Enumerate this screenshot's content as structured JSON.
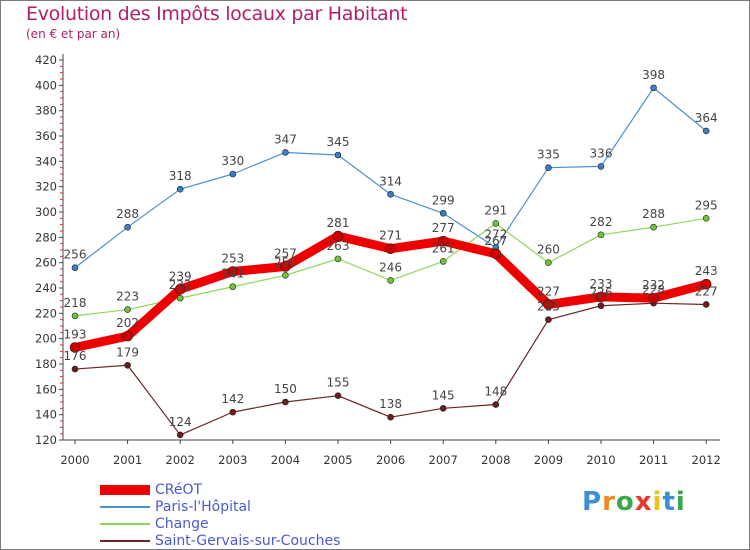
{
  "title": "Evolution des Impôts locaux par Habitant",
  "subtitle": "(en € et par an)",
  "logo": {
    "text": "Proxiti",
    "letters": [
      {
        "ch": "P",
        "color": "#3a8fd6"
      },
      {
        "ch": "r",
        "color": "#f08a1c"
      },
      {
        "ch": "o",
        "color": "#3aa84a"
      },
      {
        "ch": "x",
        "color": "#e8372a"
      },
      {
        "ch": "i",
        "color": "#f0c01c"
      },
      {
        "ch": "t",
        "color": "#3a8fd6"
      },
      {
        "ch": "i",
        "color": "#3aa84a"
      }
    ]
  },
  "chart_data": {
    "type": "line",
    "title": "Evolution des Impôts locaux par Habitant",
    "subtitle": "(en € et par an)",
    "xlabel": "",
    "ylabel": "",
    "ylim": [
      120,
      420
    ],
    "yticks": [
      120,
      140,
      160,
      180,
      200,
      220,
      240,
      260,
      280,
      300,
      320,
      340,
      360,
      380,
      400,
      420
    ],
    "grid": false,
    "legend_position": "bottom-left",
    "x": [
      "2000",
      "2001",
      "2002",
      "2003",
      "2004",
      "2005",
      "2006",
      "2007",
      "2008",
      "2009",
      "2010",
      "2011",
      "2012"
    ],
    "series": [
      {
        "name": "Paris-l'Hôpital",
        "color": "#4a90d0",
        "dot": "#3a7fc6",
        "width": 1.2,
        "values": [
          256,
          288,
          318,
          330,
          347,
          345,
          314,
          299,
          272,
          335,
          336,
          398,
          364
        ]
      },
      {
        "name": "Change",
        "color": "#8ed85a",
        "dot": "#6cc43a",
        "width": 1.2,
        "values": [
          218,
          223,
          232,
          241,
          250,
          263,
          246,
          261,
          291,
          260,
          282,
          288,
          295
        ]
      },
      {
        "name": "Saint-Gervais-sur-Couches",
        "color": "#6e2424",
        "dot": "#6e1c1c",
        "width": 1.2,
        "values": [
          176,
          179,
          124,
          142,
          150,
          155,
          138,
          145,
          148,
          215,
          226,
          228,
          227
        ]
      },
      {
        "name": "CRéOT",
        "color": "#ee0000",
        "dot": "#d00000",
        "width": 9,
        "values": [
          193,
          202,
          239,
          253,
          257,
          281,
          271,
          277,
          267,
          227,
          233,
          232,
          243
        ]
      }
    ],
    "legend_order": [
      "CRéOT",
      "Paris-l'Hôpital",
      "Change",
      "Saint-Gervais-sur-Couches"
    ]
  }
}
